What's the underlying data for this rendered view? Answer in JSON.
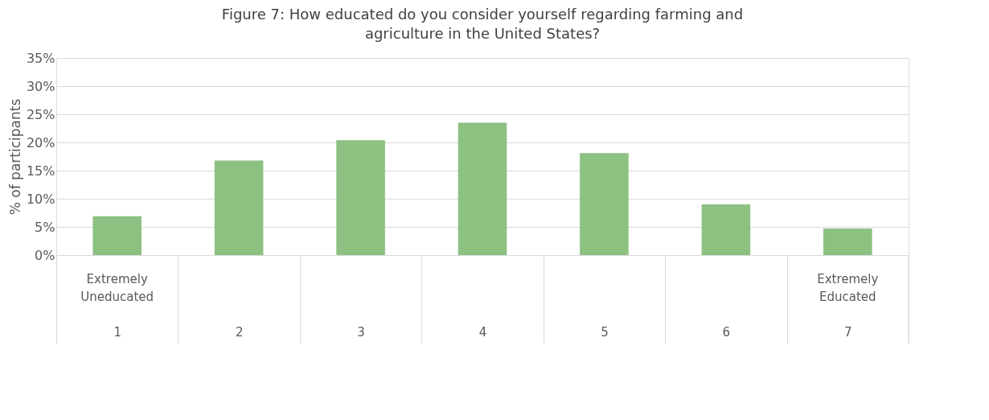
{
  "chart_data": {
    "type": "bar",
    "title": "Figure 7: How educated do you consider yourself regarding farming and agriculture in the United States?",
    "ylabel": "% of participants",
    "categories": [
      "1",
      "2",
      "3",
      "4",
      "5",
      "6",
      "7"
    ],
    "values": [
      6.9,
      16.8,
      20.4,
      23.5,
      18.1,
      9.0,
      4.7
    ],
    "color": "#8dc182",
    "ylim": [
      0,
      35
    ],
    "yticks": [
      {
        "value": 0,
        "label": "0%"
      },
      {
        "value": 5,
        "label": "5%"
      },
      {
        "value": 10,
        "label": "10%"
      },
      {
        "value": 15,
        "label": "15%"
      },
      {
        "value": 20,
        "label": "20%"
      },
      {
        "value": 25,
        "label": "25%"
      },
      {
        "value": 30,
        "label": "30%"
      },
      {
        "value": 35,
        "label": "35%"
      }
    ],
    "annotations": [
      "Extremely Uneducated",
      "Extremely Educated"
    ],
    "grid": "y"
  }
}
